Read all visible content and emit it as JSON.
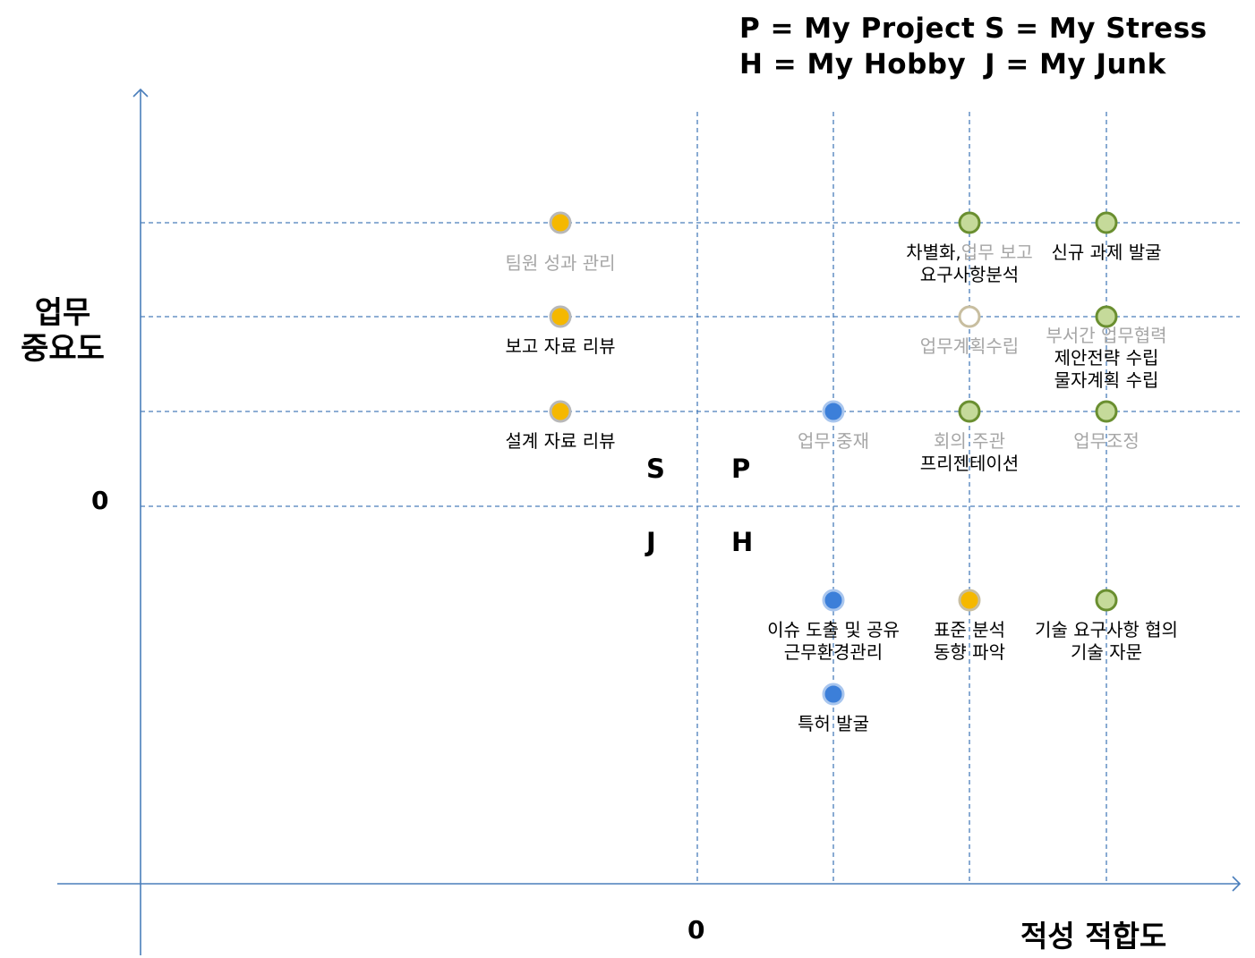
{
  "legend": {
    "p": "P = My Project",
    "s": "S = My Stress",
    "h": "H = My Hobby",
    "j": "J = My Junk"
  },
  "axes": {
    "y_label_line1": "업무",
    "y_label_line2": "중요도",
    "x_label": "적성 적합도",
    "y_zero": "0",
    "x_zero": "0"
  },
  "quadrants": {
    "s": "S",
    "p": "P",
    "j": "J",
    "h": "H"
  },
  "colors": {
    "axis": "#4a7ebb",
    "grid": "#4a7ebb",
    "stress_fill": "#f5b800",
    "stress_stroke": "#b8b8b8",
    "blue_fill": "#3c7fd9",
    "blue_stroke": "#a9c6ee",
    "green_fill": "#c5da9a",
    "green_stroke": "#6a8f30",
    "hollow_fill": "#ffffff",
    "hollow_stroke": "#c8bea0",
    "yellow_fill": "#f5b800",
    "yellow_stroke": "#c8bea0",
    "label_black": "#000000",
    "label_gray": "#a6a6a6"
  },
  "points": [
    {
      "id": "team-eval",
      "col": 0,
      "row": 3,
      "style": "stress",
      "labels": [
        {
          "text": "팀원 성과 관리",
          "color": "gray"
        }
      ]
    },
    {
      "id": "report-review",
      "col": 0,
      "row": 2,
      "style": "stress",
      "labels": [
        {
          "text": "보고 자료 리뷰",
          "color": "black"
        }
      ]
    },
    {
      "id": "design-review",
      "col": 0,
      "row": 1,
      "style": "stress",
      "labels": [
        {
          "text": "설계 자료 리뷰",
          "color": "black"
        }
      ]
    },
    {
      "id": "mediation",
      "col": 2,
      "row": 1,
      "style": "blue",
      "labels": [
        {
          "text": "업무 중재",
          "color": "gray"
        }
      ]
    },
    {
      "id": "issue-share",
      "col": 2,
      "row": -1,
      "style": "blue",
      "labels": [
        {
          "text": "이슈 도출 및 공유",
          "color": "black"
        },
        {
          "text": "근무환경관리",
          "color": "black"
        }
      ]
    },
    {
      "id": "patent",
      "col": 2,
      "row": -2,
      "style": "blue",
      "labels": [
        {
          "text": "특허 발굴",
          "color": "black"
        }
      ]
    },
    {
      "id": "diff-report",
      "col": 3,
      "row": 3,
      "style": "green",
      "labels": [
        {
          "parts": [
            {
              "text": "차별화,",
              "color": "black"
            },
            {
              "text": "업무 보고",
              "color": "gray"
            }
          ]
        },
        {
          "text": "요구사항분석",
          "color": "black"
        }
      ]
    },
    {
      "id": "work-plan",
      "col": 3,
      "row": 2,
      "style": "hollow",
      "labels": [
        {
          "text": "업무계획수립",
          "color": "gray"
        }
      ]
    },
    {
      "id": "meeting",
      "col": 3,
      "row": 1,
      "style": "green",
      "labels": [
        {
          "text": "회의 주관",
          "color": "gray"
        },
        {
          "text": "프리젠테이션",
          "color": "black"
        }
      ]
    },
    {
      "id": "standard",
      "col": 3,
      "row": -1,
      "style": "yellow",
      "labels": [
        {
          "text": "표준 분석",
          "color": "black"
        },
        {
          "text": "동향 파악",
          "color": "black"
        }
      ]
    },
    {
      "id": "new-task",
      "col": 4,
      "row": 3,
      "style": "green",
      "labels": [
        {
          "text": "신규 과제 발굴",
          "color": "black"
        }
      ]
    },
    {
      "id": "cooperation",
      "col": 4,
      "row": 2,
      "style": "green",
      "labels": [
        {
          "text": "부서간 업무협력",
          "color": "gray"
        },
        {
          "text": "제안전략 수립",
          "color": "black"
        },
        {
          "text": "물자계획 수립",
          "color": "black"
        }
      ]
    },
    {
      "id": "adjust",
      "col": 4,
      "row": 1,
      "style": "green",
      "labels": [
        {
          "text": "업무조정",
          "color": "gray"
        }
      ]
    },
    {
      "id": "tech-consult",
      "col": 4,
      "row": -1,
      "style": "green",
      "labels": [
        {
          "text": "기술 요구사항 협의",
          "color": "black"
        },
        {
          "text": "기술 자문",
          "color": "black"
        }
      ]
    }
  ]
}
